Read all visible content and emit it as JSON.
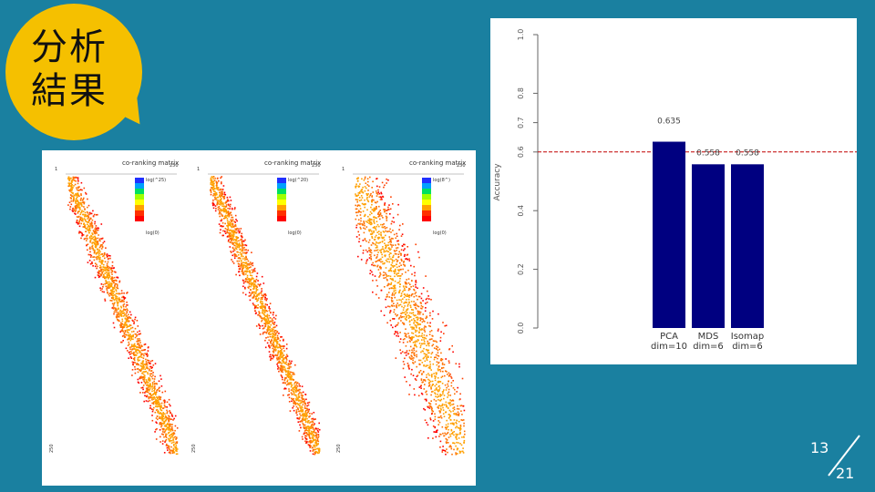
{
  "slide": {
    "title_line1": "分析",
    "title_line2": "結果"
  },
  "heatmaps": [
    {
      "title": "co-ranking matrix",
      "corner": "250",
      "legend_top": "log(^25)",
      "legend_bottom": "log(0)",
      "axis_top": "1",
      "axis_bottom": "250",
      "spread": 0.15
    },
    {
      "title": "co-ranking matrix",
      "corner": "250",
      "legend_top": "log(^20)",
      "legend_bottom": "log(0)",
      "axis_top": "1",
      "axis_bottom": "250",
      "spread": 0.13
    },
    {
      "title": "co-ranking matrix",
      "corner": "250",
      "legend_top": "log(8^)",
      "legend_bottom": "log(0)",
      "axis_top": "1",
      "axis_bottom": "250",
      "spread": 0.34
    }
  ],
  "chart_data": {
    "type": "bar",
    "categories": [
      "PCA\ndim=10",
      "MDS\ndim=6",
      "Isomap\ndim=6"
    ],
    "values": [
      0.635,
      0.558,
      0.558
    ],
    "value_labels": [
      "0.635",
      "0.558",
      "0.558"
    ],
    "ylabel": "Accuracy",
    "ylim": [
      0.0,
      1.0
    ],
    "yticks": [
      "0.0",
      "0.2",
      "0.4",
      "0.6",
      "0.7",
      "0.8",
      "1.0"
    ],
    "ytick_values": [
      0.0,
      0.2,
      0.4,
      0.6,
      0.7,
      0.8,
      1.0
    ],
    "reference_line": 0.6,
    "bar_color": "#000080",
    "reference_color": "#c00000"
  },
  "page": {
    "current": "13",
    "total": "21"
  }
}
